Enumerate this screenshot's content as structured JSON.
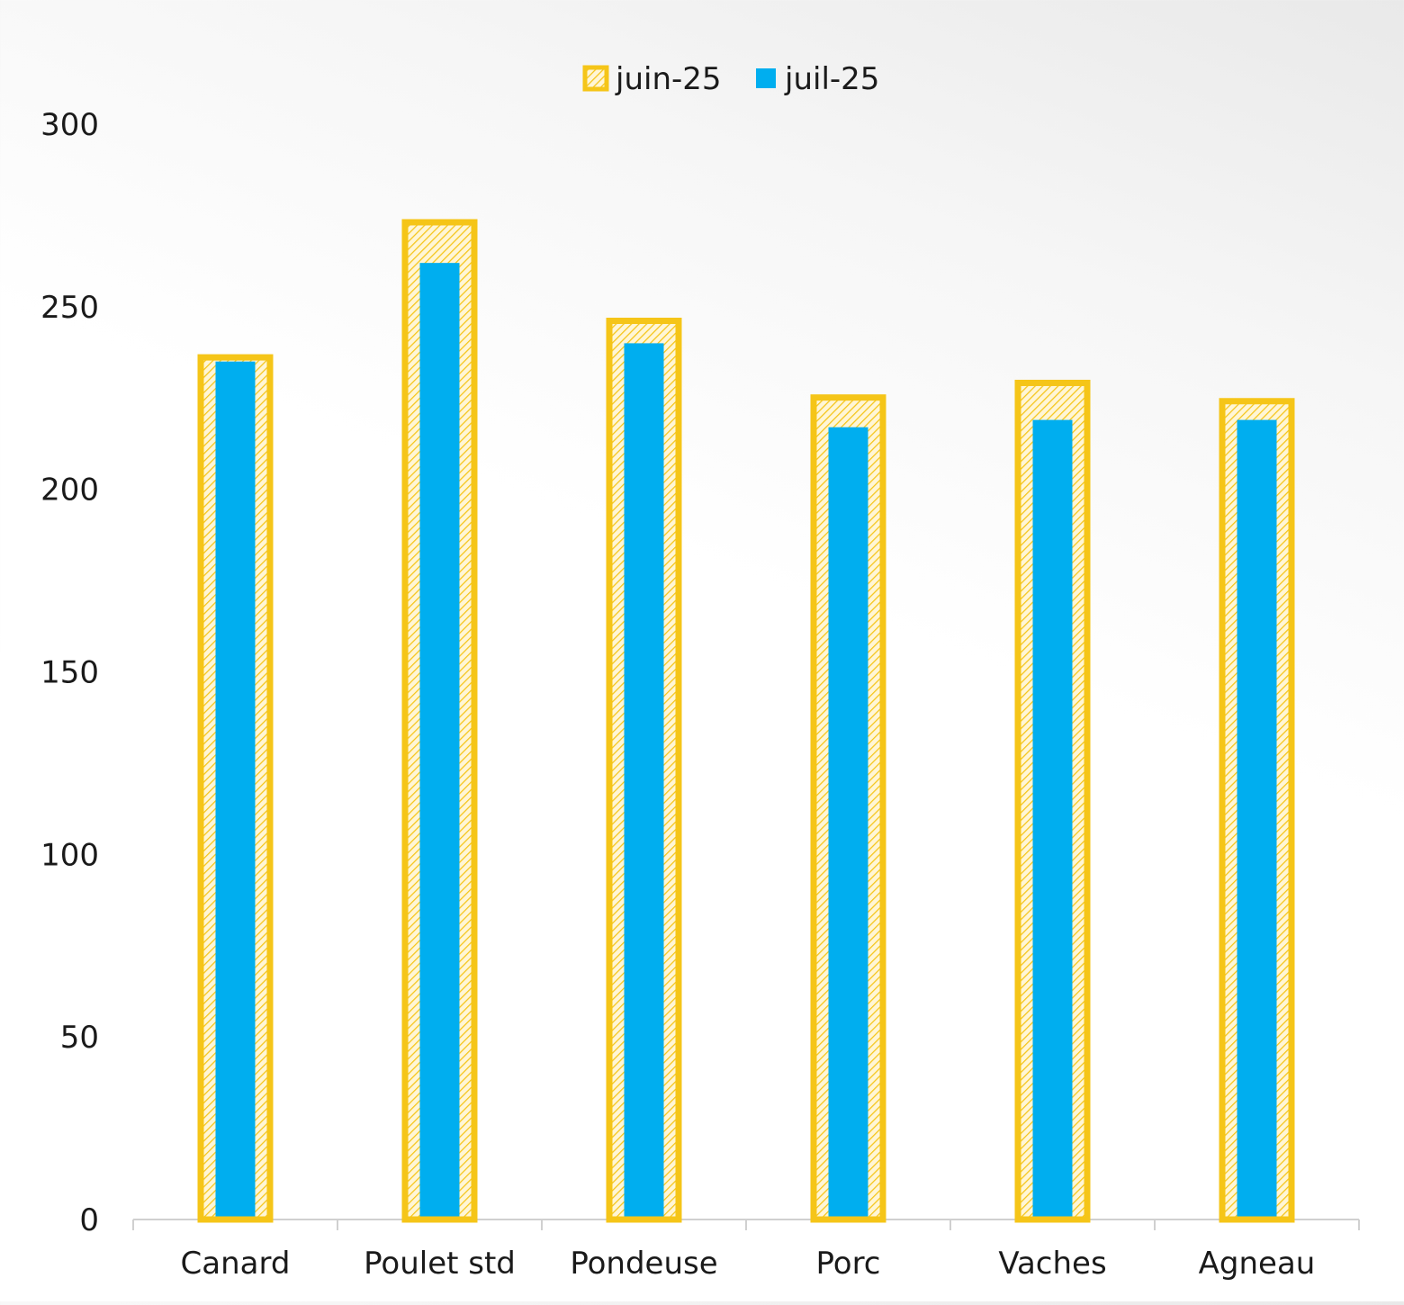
{
  "chart_data": {
    "type": "bar",
    "title": "",
    "xlabel": "",
    "ylabel": "",
    "categories": [
      "Canard",
      "Poulet std",
      "Pondeuse",
      "Porc",
      "Vaches",
      "Agneau"
    ],
    "series": [
      {
        "name": "juin-25",
        "values": [
          237,
          274,
          247,
          226,
          230,
          225
        ]
      },
      {
        "name": "juil-25",
        "values": [
          235,
          262,
          240,
          217,
          219,
          219
        ]
      }
    ],
    "ylim": [
      0,
      300
    ],
    "yticks": [
      "0",
      "50",
      "100",
      "150",
      "200",
      "250",
      "300"
    ],
    "grid": false,
    "legend_position": "top-center",
    "colors": {
      "juin-25_border": "#F5C518",
      "juin-25_hatch": "#F5C518",
      "juil-25_fill": "#00AEEF",
      "axis": "#d0d0d0"
    },
    "bar_style": "overlapped: juin-25 hatched outline bar behind narrower juil-25 solid bar"
  }
}
